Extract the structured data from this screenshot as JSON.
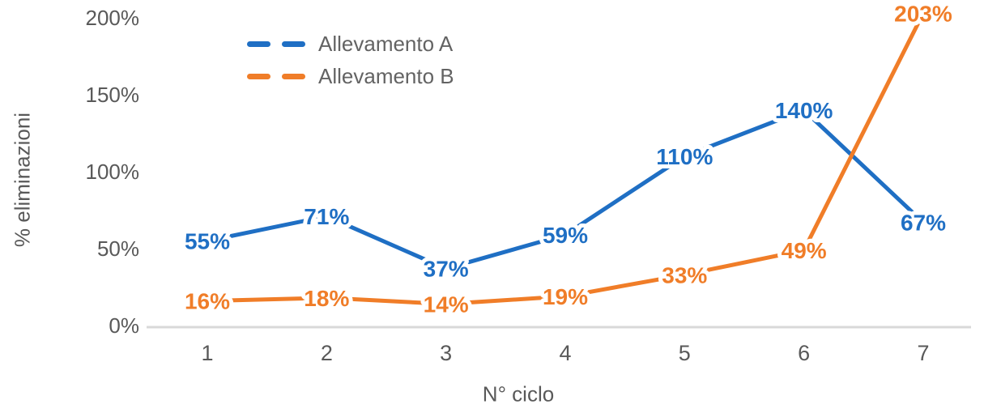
{
  "chart_data": {
    "type": "line",
    "title": "",
    "xlabel": "N° ciclo",
    "ylabel": "% eliminazioni",
    "categories": [
      "1",
      "2",
      "3",
      "4",
      "5",
      "6",
      "7"
    ],
    "series": [
      {
        "name": "Allevamento A",
        "color": "#1F6FC4",
        "values": [
          55,
          71,
          37,
          59,
          110,
          140,
          67
        ],
        "labels": [
          "55%",
          "71%",
          "37%",
          "59%",
          "110%",
          "140%",
          "67%"
        ]
      },
      {
        "name": "Allevamento B",
        "color": "#F07D28",
        "values": [
          16,
          18,
          14,
          19,
          33,
          49,
          203
        ],
        "labels": [
          "16%",
          "18%",
          "14%",
          "19%",
          "33%",
          "49%",
          "203%"
        ]
      }
    ],
    "y_ticks": [
      {
        "value": 0,
        "label": "0%"
      },
      {
        "value": 50,
        "label": "50%"
      },
      {
        "value": 100,
        "label": "100%"
      },
      {
        "value": 150,
        "label": "150%"
      },
      {
        "value": 200,
        "label": "200%"
      }
    ],
    "ylim": [
      0,
      200
    ],
    "grid": false,
    "legend_position": "top-left-inset",
    "data_labels": true,
    "line_style": "dashed-legend-solid-plot",
    "axis_color": "#D9D9D9",
    "text_color": "#595959"
  }
}
